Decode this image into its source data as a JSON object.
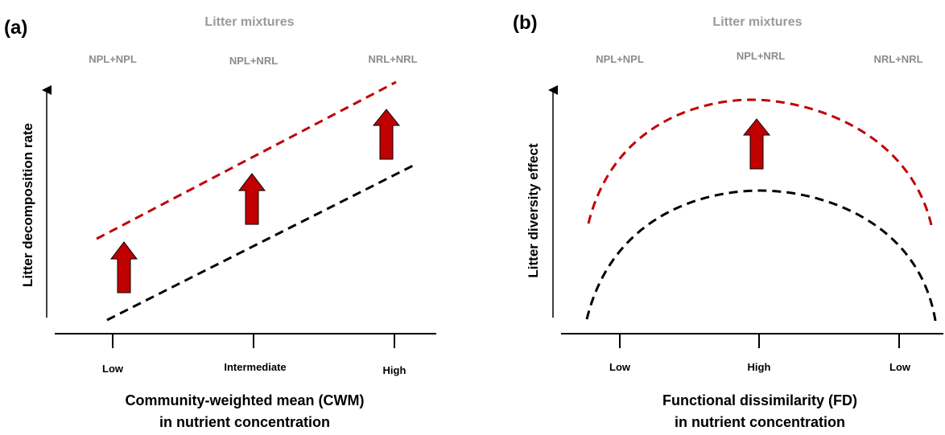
{
  "panels": [
    {
      "label": "(a)",
      "group_title": "Litter mixtures",
      "mixtures": [
        "NPL+NPL",
        "NPL+NRL",
        "NRL+NRL"
      ],
      "y_label": "Litter decomposition rate",
      "x_ticks": [
        "Low",
        "Intermediate",
        "High"
      ],
      "x_title_line1": "Community-weighted mean (CWM)",
      "x_title_line2": "in nutrient concentration",
      "upper_line_color": "#c00000",
      "lower_line_color": "#000000",
      "arrow_color": "#c00000",
      "arrow_count": 3
    },
    {
      "label": "(b)",
      "group_title": "Litter mixtures",
      "mixtures": [
        "NPL+NPL",
        "NPL+NRL",
        "NRL+NRL"
      ],
      "y_label": "Litter diversity effect",
      "x_ticks": [
        "Low",
        "High",
        "Low"
      ],
      "x_title_line1": "Functional dissimilarity (FD)",
      "x_title_line2": "in nutrient concentration",
      "upper_line_color": "#c00000",
      "lower_line_color": "#000000",
      "arrow_color": "#c00000",
      "arrow_count": 1
    }
  ]
}
